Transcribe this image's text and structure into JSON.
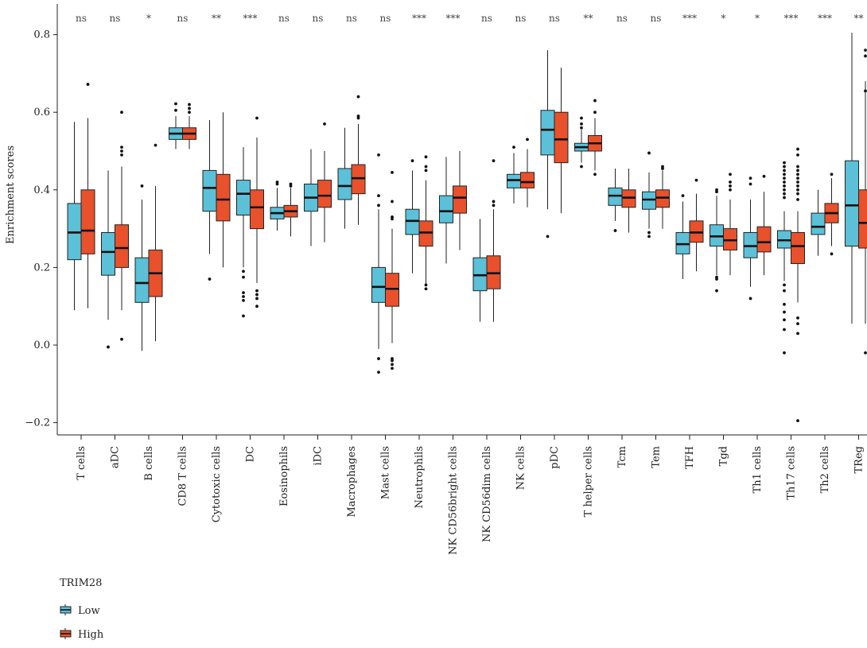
{
  "chart_data": {
    "type": "box",
    "ylabel": "Enrichment scores",
    "ylim": [
      -0.25,
      0.9
    ],
    "yticks": [
      -0.2,
      0.0,
      0.2,
      0.4,
      0.6,
      0.8
    ],
    "ytick_labels": [
      "−0.2",
      "0.0",
      "0.2",
      "0.4",
      "0.6",
      "0.8"
    ],
    "legend": {
      "title": "TRIM28",
      "entries": [
        {
          "name": "Low",
          "color": "#5bc0d8"
        },
        {
          "name": "High",
          "color": "#e8512b"
        }
      ]
    },
    "categories": [
      "T cells",
      "aDC",
      "B cells",
      "CD8 T cells",
      "Cytotoxic cells",
      "DC",
      "Eosinophils",
      "iDC",
      "Macrophages",
      "Mast cells",
      "Neutrophils",
      "NK CD56bright cells",
      "NK CD56dim cells",
      "NK cells",
      "pDC",
      "T helper cells",
      "Tcm",
      "Tem",
      "TFH",
      "Tgd",
      "Th1 cells",
      "Th17 cells",
      "Th2 cells",
      "TReg"
    ],
    "significance": [
      "ns",
      "ns",
      "*",
      "ns",
      "**",
      "***",
      "ns",
      "ns",
      "ns",
      "ns",
      "***",
      "***",
      "ns",
      "ns",
      "ns",
      "**",
      "ns",
      "ns",
      "***",
      "*",
      "*",
      "***",
      "***",
      "**"
    ],
    "series": [
      {
        "name": "Low",
        "color": "#5bc0d8",
        "boxes": [
          {
            "min": 0.09,
            "q1": 0.22,
            "median": 0.29,
            "q3": 0.365,
            "max": 0.575,
            "outliers": []
          },
          {
            "min": 0.065,
            "q1": 0.18,
            "median": 0.24,
            "q3": 0.29,
            "max": 0.45,
            "outliers": [
              -0.005
            ]
          },
          {
            "min": -0.015,
            "q1": 0.11,
            "median": 0.16,
            "q3": 0.225,
            "max": 0.375,
            "outliers": [
              0.41
            ]
          },
          {
            "min": 0.505,
            "q1": 0.53,
            "median": 0.545,
            "q3": 0.56,
            "max": 0.59,
            "outliers": [
              0.605,
              0.622
            ]
          },
          {
            "min": 0.235,
            "q1": 0.345,
            "median": 0.405,
            "q3": 0.45,
            "max": 0.58,
            "outliers": [
              0.17
            ]
          },
          {
            "min": 0.2,
            "q1": 0.335,
            "median": 0.39,
            "q3": 0.425,
            "max": 0.51,
            "outliers": [
              0.19,
              0.175,
              0.135,
              0.125,
              0.115,
              0.075
            ]
          },
          {
            "min": 0.295,
            "q1": 0.325,
            "median": 0.34,
            "q3": 0.355,
            "max": 0.405,
            "outliers": [
              0.415,
              0.42
            ]
          },
          {
            "min": 0.255,
            "q1": 0.345,
            "median": 0.38,
            "q3": 0.415,
            "max": 0.505,
            "outliers": []
          },
          {
            "min": 0.3,
            "q1": 0.375,
            "median": 0.41,
            "q3": 0.455,
            "max": 0.56,
            "outliers": []
          },
          {
            "min": -0.01,
            "q1": 0.11,
            "median": 0.15,
            "q3": 0.2,
            "max": 0.35,
            "outliers": [
              0.49,
              0.385,
              0.36,
              -0.035,
              -0.07
            ]
          },
          {
            "min": 0.185,
            "q1": 0.285,
            "median": 0.32,
            "q3": 0.35,
            "max": 0.45,
            "outliers": [
              0.475
            ]
          },
          {
            "min": 0.21,
            "q1": 0.315,
            "median": 0.345,
            "q3": 0.385,
            "max": 0.485,
            "outliers": []
          },
          {
            "min": 0.06,
            "q1": 0.14,
            "median": 0.18,
            "q3": 0.225,
            "max": 0.325,
            "outliers": []
          },
          {
            "min": 0.365,
            "q1": 0.405,
            "median": 0.425,
            "q3": 0.44,
            "max": 0.495,
            "outliers": [
              0.51
            ]
          },
          {
            "min": 0.35,
            "q1": 0.49,
            "median": 0.555,
            "q3": 0.605,
            "max": 0.76,
            "outliers": [
              0.28
            ]
          },
          {
            "min": 0.47,
            "q1": 0.5,
            "median": 0.51,
            "q3": 0.52,
            "max": 0.555,
            "outliers": [
              0.56,
              0.57,
              0.585,
              0.46
            ]
          },
          {
            "min": 0.32,
            "q1": 0.36,
            "median": 0.385,
            "q3": 0.405,
            "max": 0.455,
            "outliers": [
              0.295
            ]
          },
          {
            "min": 0.3,
            "q1": 0.35,
            "median": 0.375,
            "q3": 0.395,
            "max": 0.445,
            "outliers": [
              0.495,
              0.29,
              0.28
            ]
          },
          {
            "min": 0.17,
            "q1": 0.235,
            "median": 0.26,
            "q3": 0.29,
            "max": 0.37,
            "outliers": [
              0.385
            ]
          },
          {
            "min": 0.18,
            "q1": 0.255,
            "median": 0.28,
            "q3": 0.31,
            "max": 0.385,
            "outliers": [
              0.395,
              0.4,
              0.175,
              0.17,
              0.14
            ]
          },
          {
            "min": 0.15,
            "q1": 0.225,
            "median": 0.255,
            "q3": 0.29,
            "max": 0.375,
            "outliers": [
              0.43,
              0.415,
              0.12
            ]
          },
          {
            "min": 0.165,
            "q1": 0.25,
            "median": 0.27,
            "q3": 0.295,
            "max": 0.345,
            "outliers": [
              0.47,
              0.46,
              0.45,
              0.44,
              0.43,
              0.42,
              0.41,
              0.4,
              0.39,
              0.38,
              0.155,
              0.14,
              0.105,
              0.085,
              0.065,
              0.04,
              -0.02
            ]
          },
          {
            "min": 0.23,
            "q1": 0.285,
            "median": 0.305,
            "q3": 0.34,
            "max": 0.4,
            "outliers": []
          },
          {
            "min": 0.055,
            "q1": 0.255,
            "median": 0.36,
            "q3": 0.475,
            "max": 0.805,
            "outliers": []
          }
        ]
      },
      {
        "name": "High",
        "color": "#e8512b",
        "boxes": [
          {
            "min": 0.095,
            "q1": 0.235,
            "median": 0.295,
            "q3": 0.4,
            "max": 0.585,
            "outliers": [
              0.672
            ]
          },
          {
            "min": 0.09,
            "q1": 0.2,
            "median": 0.25,
            "q3": 0.31,
            "max": 0.46,
            "outliers": [
              0.6,
              0.51,
              0.5,
              0.49,
              0.015
            ]
          },
          {
            "min": 0.01,
            "q1": 0.125,
            "median": 0.185,
            "q3": 0.245,
            "max": 0.41,
            "outliers": [
              0.515
            ]
          },
          {
            "min": 0.505,
            "q1": 0.53,
            "median": 0.545,
            "q3": 0.56,
            "max": 0.59,
            "outliers": [
              0.6,
              0.61,
              0.62
            ]
          },
          {
            "min": 0.2,
            "q1": 0.32,
            "median": 0.375,
            "q3": 0.44,
            "max": 0.6,
            "outliers": []
          },
          {
            "min": 0.16,
            "q1": 0.3,
            "median": 0.355,
            "q3": 0.4,
            "max": 0.535,
            "outliers": [
              0.585,
              0.14,
              0.13,
              0.12,
              0.1
            ]
          },
          {
            "min": 0.28,
            "q1": 0.33,
            "median": 0.345,
            "q3": 0.36,
            "max": 0.405,
            "outliers": [
              0.41,
              0.415
            ]
          },
          {
            "min": 0.265,
            "q1": 0.355,
            "median": 0.385,
            "q3": 0.425,
            "max": 0.5,
            "outliers": [
              0.57
            ]
          },
          {
            "min": 0.31,
            "q1": 0.39,
            "median": 0.43,
            "q3": 0.465,
            "max": 0.57,
            "outliers": [
              0.585,
              0.59,
              0.64
            ]
          },
          {
            "min": 0.005,
            "q1": 0.1,
            "median": 0.145,
            "q3": 0.185,
            "max": 0.3,
            "outliers": [
              0.445,
              0.37,
              0.33,
              0.325,
              -0.035,
              -0.04,
              -0.05,
              -0.06
            ]
          },
          {
            "min": 0.155,
            "q1": 0.255,
            "median": 0.29,
            "q3": 0.32,
            "max": 0.425,
            "outliers": [
              0.485,
              0.46,
              0.45,
              0.155,
              0.145
            ]
          },
          {
            "min": 0.245,
            "q1": 0.34,
            "median": 0.38,
            "q3": 0.41,
            "max": 0.5,
            "outliers": []
          },
          {
            "min": 0.06,
            "q1": 0.145,
            "median": 0.185,
            "q3": 0.23,
            "max": 0.35,
            "outliers": [
              0.36,
              0.37,
              0.475
            ]
          },
          {
            "min": 0.355,
            "q1": 0.405,
            "median": 0.42,
            "q3": 0.445,
            "max": 0.505,
            "outliers": [
              0.53
            ]
          },
          {
            "min": 0.34,
            "q1": 0.47,
            "median": 0.53,
            "q3": 0.6,
            "max": 0.715,
            "outliers": []
          },
          {
            "min": 0.45,
            "q1": 0.5,
            "median": 0.52,
            "q3": 0.54,
            "max": 0.585,
            "outliers": [
              0.6,
              0.63,
              0.44
            ]
          },
          {
            "min": 0.29,
            "q1": 0.355,
            "median": 0.38,
            "q3": 0.4,
            "max": 0.455,
            "outliers": []
          },
          {
            "min": 0.3,
            "q1": 0.355,
            "median": 0.38,
            "q3": 0.4,
            "max": 0.45,
            "outliers": [
              0.455,
              0.46
            ]
          },
          {
            "min": 0.19,
            "q1": 0.265,
            "median": 0.29,
            "q3": 0.32,
            "max": 0.39,
            "outliers": [
              0.425
            ]
          },
          {
            "min": 0.18,
            "q1": 0.245,
            "median": 0.27,
            "q3": 0.3,
            "max": 0.375,
            "outliers": [
              0.44,
              0.42,
              0.41,
              0.4
            ]
          },
          {
            "min": 0.18,
            "q1": 0.24,
            "median": 0.265,
            "q3": 0.305,
            "max": 0.395,
            "outliers": [
              0.435
            ]
          },
          {
            "min": 0.11,
            "q1": 0.21,
            "median": 0.255,
            "q3": 0.29,
            "max": 0.345,
            "outliers": [
              0.505,
              0.49,
              0.46,
              0.45,
              0.44,
              0.43,
              0.42,
              0.41,
              0.4,
              0.39,
              0.375,
              0.07,
              0.055,
              0.03,
              -0.195
            ]
          },
          {
            "min": 0.255,
            "q1": 0.315,
            "median": 0.34,
            "q3": 0.365,
            "max": 0.43,
            "outliers": [
              0.44,
              0.235
            ]
          },
          {
            "min": 0.055,
            "q1": 0.25,
            "median": 0.315,
            "q3": 0.4,
            "max": 0.68,
            "outliers": [
              0.76,
              0.745,
              0.655,
              -0.02
            ]
          }
        ]
      }
    ]
  }
}
